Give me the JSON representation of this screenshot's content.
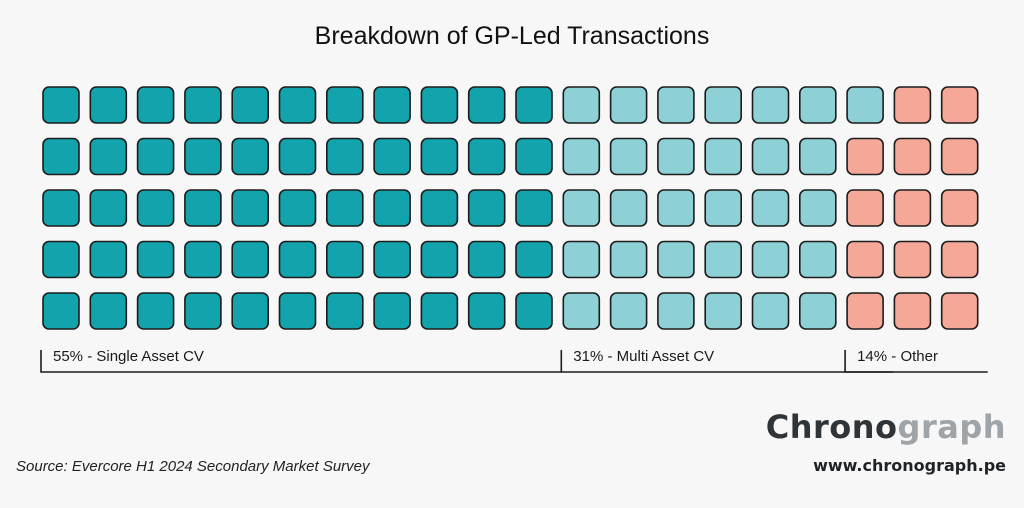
{
  "chart_data": {
    "type": "waffle",
    "title": "Breakdown of GP-Led Transactions",
    "total_cells": 100,
    "columns": 20,
    "rows": 5,
    "series": [
      {
        "name": "Single Asset CV",
        "label": "55% - Single Asset CV",
        "value": 55,
        "color": "#13a3ac"
      },
      {
        "name": "Multi Asset CV",
        "label": "31% - Multi Asset CV",
        "value": 31,
        "color": "#8dd0d6"
      },
      {
        "name": "Other",
        "label": "14% - Other",
        "value": 14,
        "color": "#f6a898"
      }
    ]
  },
  "footer": {
    "source": "Source: Evercore H1 2024 Secondary Market Survey",
    "brand_part1": "Chrono",
    "brand_part2": "graph",
    "url": "www.chronograph.pe"
  }
}
